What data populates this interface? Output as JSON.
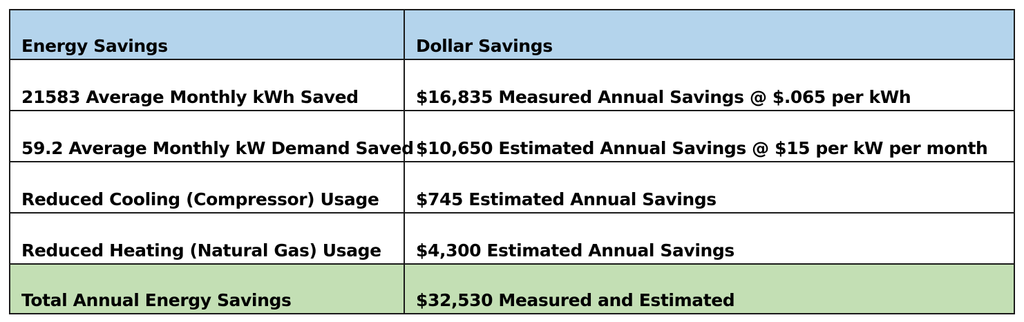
{
  "colors": {
    "header_background": "#b4d4ec",
    "total_background": "#c3dfb4",
    "border": "#1a1a1a"
  },
  "table": {
    "headers": [
      "Energy Savings",
      "Dollar Savings"
    ],
    "rows": [
      [
        "21583 Average Monthly kWh Saved",
        "$16,835 Measured Annual Savings @ $.065 per kWh"
      ],
      [
        "59.2 Average Monthly kW Demand Saved",
        "$10,650 Estimated Annual Savings @ $15 per kW per month"
      ],
      [
        "Reduced Cooling (Compressor) Usage",
        "$745 Estimated Annual Savings"
      ],
      [
        "Reduced Heating (Natural Gas) Usage",
        "$4,300 Estimated Annual Savings"
      ]
    ],
    "total": [
      "Total Annual Energy Savings",
      "$32,530 Measured and Estimated"
    ]
  }
}
